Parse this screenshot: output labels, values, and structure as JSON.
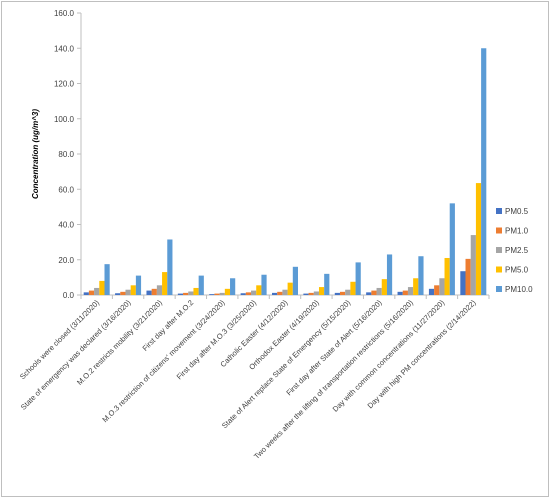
{
  "chart_data": {
    "type": "bar",
    "title": "",
    "xlabel": "",
    "ylabel": "Concentration (ug/m^3)",
    "ylim": [
      0,
      160
    ],
    "yticks": [
      "0.0",
      "20.0",
      "40.0",
      "60.0",
      "80.0",
      "100.0",
      "120.0",
      "140.0",
      "160.0"
    ],
    "grid": false,
    "legend_position": "right",
    "categories": [
      "Schools were closed (3/11/2020)",
      "State of emergency was declared (3/16/2020)",
      "M.O.2 restricts mobility (3/21/2020)",
      "First day after M.O.2",
      "M.O.3 restriction of citizens' movement (3/24/2020)",
      "First day after M.O.3 (3/25/2020)",
      "Catholic Easter (4/12/2020)",
      "Orthodox Easter (4/19/2020)",
      "State of Alert replace State of Emergency (5/15/2020)",
      "First day after State of Alert (5/16/2020)",
      "Two weeks after the lifting of transportation restrictions (5/16/2020)",
      "Day with common concentrations (11/27/2020)",
      "Day with high PM concentrations (2/14/2022)"
    ],
    "series": [
      {
        "name": "PM0.5",
        "color": "#4472c4",
        "values": [
          1.5,
          1.0,
          2.5,
          0.8,
          0.5,
          1.0,
          1.2,
          0.8,
          1.2,
          1.5,
          1.8,
          3.5,
          13.5
        ]
      },
      {
        "name": "PM1.0",
        "color": "#ed7d31",
        "values": [
          2.5,
          1.8,
          3.5,
          1.2,
          0.8,
          1.5,
          1.8,
          1.2,
          1.8,
          2.5,
          2.5,
          5.5,
          20.5
        ]
      },
      {
        "name": "PM2.5",
        "color": "#a5a5a5",
        "values": [
          4.0,
          3.0,
          5.5,
          2.0,
          1.2,
          2.5,
          3.0,
          2.0,
          3.0,
          4.0,
          4.5,
          9.5,
          34.0
        ]
      },
      {
        "name": "PM5.0",
        "color": "#ffc000",
        "values": [
          8.0,
          5.5,
          13.0,
          4.0,
          3.5,
          5.5,
          7.0,
          4.5,
          7.5,
          9.0,
          9.5,
          21.0,
          63.5
        ]
      },
      {
        "name": "PM10.0",
        "color": "#5b9bd5",
        "values": [
          17.5,
          11.0,
          31.5,
          11.0,
          9.5,
          11.5,
          16.0,
          12.0,
          18.5,
          23.0,
          22.0,
          52.0,
          140.0
        ]
      }
    ]
  }
}
